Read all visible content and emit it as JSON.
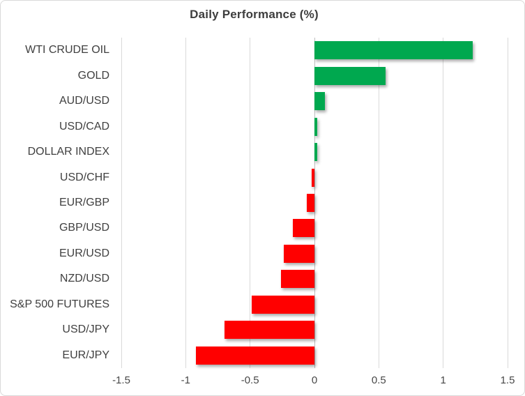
{
  "title": "Daily Performance (%)",
  "colors": {
    "positive": "#00a84f",
    "negative": "#ff0000",
    "gridline": "#d9d9d9",
    "zero_line": "#bfbfbf",
    "text": "#3f3f3f",
    "border": "#d9d9d9",
    "background": "#ffffff"
  },
  "chart_data": {
    "type": "bar",
    "orientation": "horizontal",
    "title": "Daily Performance (%)",
    "xlabel": "",
    "ylabel": "",
    "categories": [
      "WTI CRUDE OIL",
      "GOLD",
      "AUD/USD",
      "USD/CAD",
      "DOLLAR INDEX",
      "USD/CHF",
      "EUR/GBP",
      "GBP/USD",
      "EUR/USD",
      "NZD/USD",
      "S&P 500 FUTURES",
      "USD/JPY",
      "EUR/JPY"
    ],
    "values": [
      1.23,
      0.55,
      0.08,
      0.02,
      0.02,
      -0.02,
      -0.06,
      -0.17,
      -0.24,
      -0.26,
      -0.49,
      -0.7,
      -0.92
    ],
    "xlim": [
      -1.5,
      1.5
    ],
    "x_ticks": [
      "-1.5",
      "-1",
      "-0.5",
      "0",
      "0.5",
      "1",
      "1.5"
    ],
    "x_tick_values": [
      -1.5,
      -1,
      -0.5,
      0,
      0.5,
      1,
      1.5
    ],
    "grid": "vertical-gridlines-on",
    "legend": "none",
    "positive_color": "#00a84f",
    "negative_color": "#ff0000"
  }
}
